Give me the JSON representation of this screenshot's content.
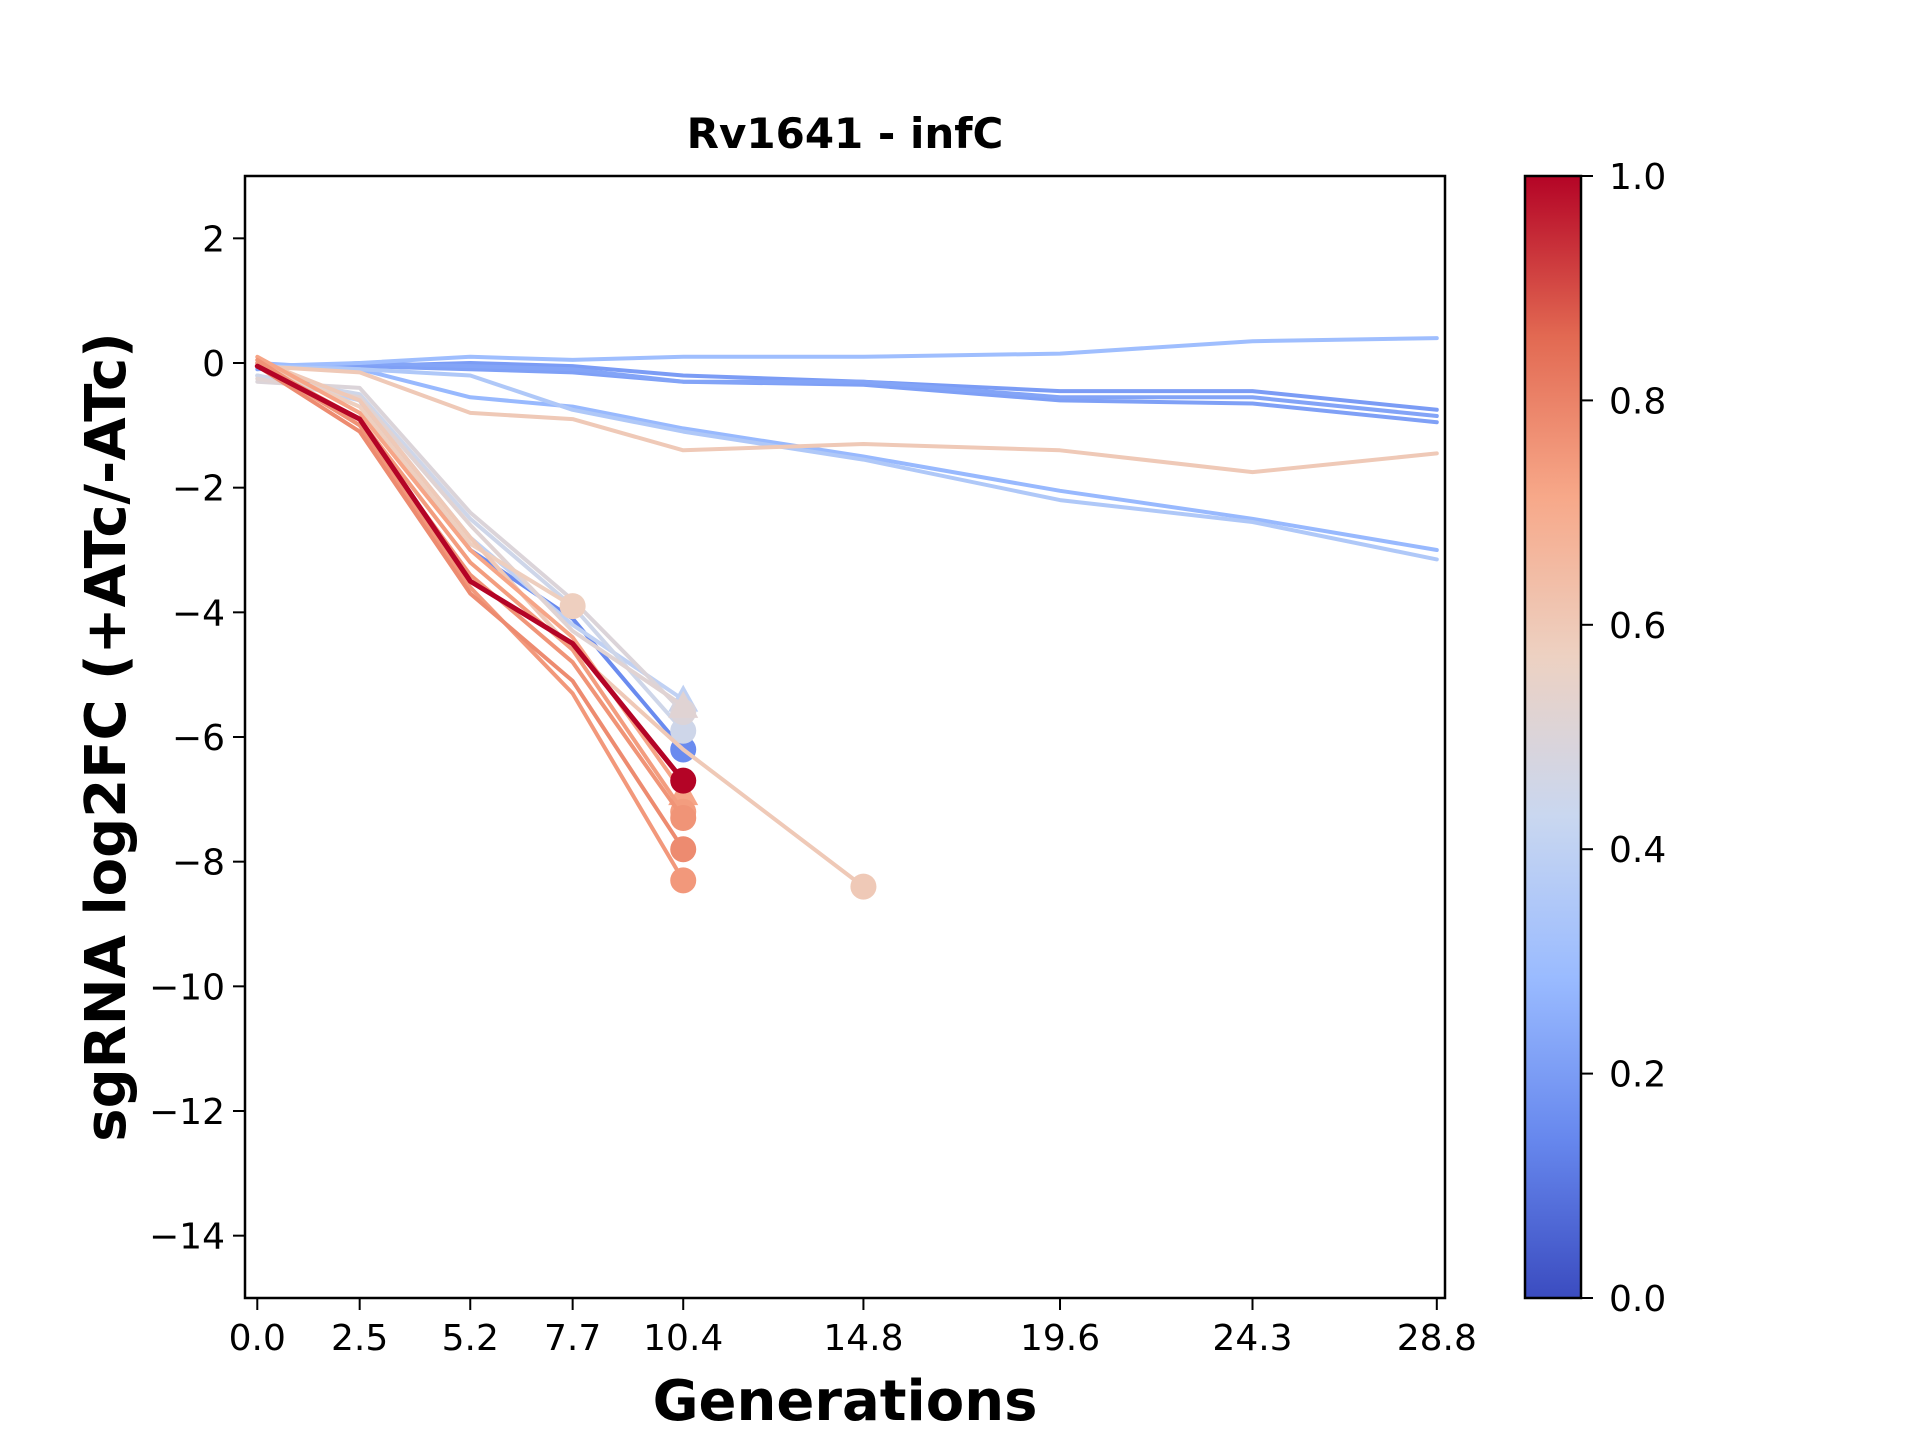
{
  "chart_data": {
    "type": "line",
    "title": "Rv1641 - infC",
    "xlabel": "Generations",
    "ylabel": "sgRNA log2FC (+ATc/-ATc)",
    "xlim": [
      -0.3,
      29.0
    ],
    "ylim": [
      -15,
      3
    ],
    "x_ticks": [
      "0.0",
      "2.5",
      "5.2",
      "7.7",
      "10.4",
      "14.8",
      "19.6",
      "24.3",
      "28.8"
    ],
    "y_ticks": [
      "2",
      "0",
      "−2",
      "−4",
      "−6",
      "−8",
      "−10",
      "−12",
      "−14"
    ],
    "grid": false,
    "legend": "none",
    "colorbar": {
      "colormap": "coolwarm",
      "min": 0.0,
      "max": 1.0,
      "ticks": [
        "0.0",
        "0.2",
        "0.4",
        "0.6",
        "0.8",
        "1.0"
      ],
      "stops": [
        "#3b4cc0",
        "#6788ee",
        "#9abbff",
        "#c9d7f0",
        "#edd1c2",
        "#f7a889",
        "#e26952",
        "#b40426"
      ]
    },
    "series": [
      {
        "strength": 0.22,
        "marker": "none",
        "x": [
          0.0,
          2.5,
          5.2,
          7.7,
          10.4,
          14.8,
          19.6,
          24.3,
          28.8
        ],
        "y": [
          -0.1,
          0.0,
          -0.05,
          -0.1,
          -0.3,
          -0.3,
          -0.55,
          -0.55,
          -0.85
        ]
      },
      {
        "strength": 0.2,
        "marker": "none",
        "x": [
          0.0,
          2.5,
          5.2,
          7.7,
          10.4,
          14.8,
          19.6,
          24.3,
          28.8
        ],
        "y": [
          -0.05,
          -0.05,
          0.0,
          -0.05,
          -0.2,
          -0.3,
          -0.45,
          -0.45,
          -0.75
        ]
      },
      {
        "strength": 0.21,
        "marker": "none",
        "x": [
          0.0,
          2.5,
          5.2,
          7.7,
          10.4,
          14.8,
          19.6,
          24.3,
          28.8
        ],
        "y": [
          -0.05,
          -0.05,
          -0.1,
          -0.15,
          -0.3,
          -0.35,
          -0.6,
          -0.65,
          -0.95
        ]
      },
      {
        "strength": 0.3,
        "marker": "none",
        "x": [
          0.0,
          2.5,
          5.2,
          7.7,
          10.4,
          14.8,
          19.6,
          24.3,
          28.8
        ],
        "y": [
          -0.05,
          0.0,
          0.1,
          0.05,
          0.1,
          0.1,
          0.15,
          0.35,
          0.4
        ]
      },
      {
        "strength": 0.28,
        "marker": "none",
        "x": [
          0.0,
          2.5,
          5.2,
          7.7,
          10.4,
          14.8,
          19.6,
          24.3,
          28.8
        ],
        "y": [
          0.0,
          -0.1,
          -0.55,
          -0.7,
          -1.05,
          -1.5,
          -2.05,
          -2.5,
          -3.0
        ]
      },
      {
        "strength": 0.35,
        "marker": "none",
        "x": [
          0.0,
          2.5,
          5.2,
          7.7,
          10.4,
          14.8,
          19.6,
          24.3,
          28.8
        ],
        "y": [
          -0.05,
          -0.1,
          -0.2,
          -0.75,
          -1.1,
          -1.55,
          -2.2,
          -2.55,
          -3.15
        ]
      },
      {
        "strength": 0.6,
        "marker": "none",
        "x": [
          0.0,
          2.5,
          5.2,
          7.7,
          10.4,
          14.8,
          19.6,
          24.3,
          28.8
        ],
        "y": [
          -0.05,
          -0.15,
          -0.8,
          -0.9,
          -1.4,
          -1.3,
          -1.4,
          -1.75,
          -1.45
        ]
      },
      {
        "strength": 0.6,
        "marker": "circle",
        "x": [
          0.0,
          2.5,
          5.2,
          7.7,
          10.4,
          14.8
        ],
        "y": [
          0.05,
          -0.6,
          -2.8,
          -4.6,
          -6.2,
          -8.4
        ]
      },
      {
        "strength": 0.15,
        "marker": "circle",
        "x": [
          0.0,
          2.5,
          5.2,
          7.7,
          10.4
        ],
        "y": [
          0.0,
          -0.6,
          -3.0,
          -4.1,
          -6.2
        ]
      },
      {
        "strength": 0.45,
        "marker": "circle",
        "x": [
          0.0,
          2.5,
          5.2,
          7.7,
          10.4
        ],
        "y": [
          -0.2,
          -0.5,
          -2.5,
          -3.9,
          -5.9
        ]
      },
      {
        "strength": 0.5,
        "marker": "circle",
        "x": [
          0.0,
          2.5,
          5.2,
          7.7,
          10.4
        ],
        "y": [
          -0.3,
          -0.4,
          -2.4,
          -3.8,
          -5.6
        ]
      },
      {
        "strength": 0.52,
        "marker": "triangle",
        "x": [
          0.0,
          2.5,
          5.2,
          7.7,
          10.4
        ],
        "y": [
          -0.25,
          -0.55,
          -2.6,
          -4.3,
          -5.5
        ]
      },
      {
        "strength": 0.4,
        "marker": "triangle",
        "x": [
          0.0,
          2.5,
          5.2,
          7.7,
          10.4
        ],
        "y": [
          -0.2,
          -0.6,
          -2.8,
          -4.2,
          -5.4
        ]
      },
      {
        "strength": 0.58,
        "marker": "circle",
        "x": [
          0.0,
          2.5,
          5.2,
          7.7
        ],
        "y": [
          0.0,
          -0.7,
          -2.9,
          -3.9
        ]
      },
      {
        "strength": 0.75,
        "marker": "circle",
        "x": [
          0.0,
          2.5,
          5.2,
          7.7,
          10.4
        ],
        "y": [
          0.0,
          -1.0,
          -3.6,
          -5.3,
          -8.3
        ]
      },
      {
        "strength": 0.78,
        "marker": "circle",
        "x": [
          0.0,
          2.5,
          5.2,
          7.7,
          10.4
        ],
        "y": [
          -0.05,
          -1.1,
          -3.7,
          -5.1,
          -7.8
        ]
      },
      {
        "strength": 0.76,
        "marker": "circle",
        "x": [
          0.0,
          2.5,
          5.2,
          7.7,
          10.4
        ],
        "y": [
          0.05,
          -1.0,
          -3.4,
          -4.8,
          -7.3
        ]
      },
      {
        "strength": 0.74,
        "marker": "circle",
        "x": [
          0.0,
          2.5,
          5.2,
          7.7,
          10.4
        ],
        "y": [
          0.0,
          -0.9,
          -3.2,
          -4.6,
          -7.2
        ]
      },
      {
        "strength": 0.72,
        "marker": "triangle",
        "x": [
          0.0,
          2.5,
          5.2,
          7.7,
          10.4
        ],
        "y": [
          0.1,
          -0.8,
          -3.0,
          -4.4,
          -6.9
        ]
      },
      {
        "strength": 1.0,
        "marker": "circle",
        "x": [
          0.0,
          2.5,
          5.2,
          7.7,
          10.4
        ],
        "y": [
          -0.05,
          -0.9,
          -3.5,
          -4.5,
          -6.7
        ]
      }
    ]
  }
}
